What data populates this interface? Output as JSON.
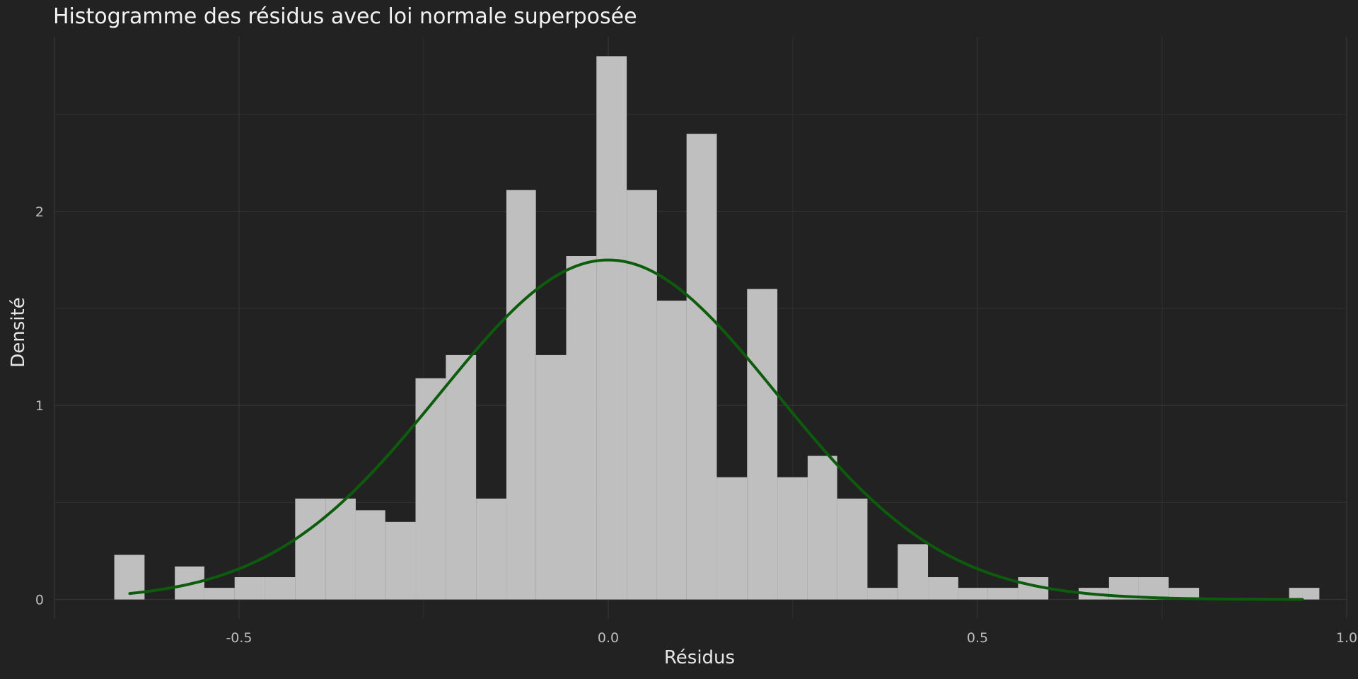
{
  "chart_data": {
    "type": "bar",
    "title": "Histogramme des résidus avec loi normale superposée",
    "xlabel": "Résidus",
    "ylabel": "Densité",
    "xlim": [
      -0.75,
      1.0
    ],
    "ylim": [
      -0.1,
      2.9
    ],
    "xticks": [
      -0.5,
      0.0,
      0.5,
      1.0
    ],
    "xtick_labels": [
      "-0.5",
      "0.0",
      "0.5",
      "1.0"
    ],
    "yticks": [
      0,
      1,
      2
    ],
    "ytick_labels": [
      "0",
      "1",
      "2"
    ],
    "grid": true,
    "legend": "none",
    "bin_width": 0.0408,
    "bins": [
      {
        "x0": -0.669,
        "x1": -0.628,
        "density": 0.23
      },
      {
        "x0": -0.628,
        "x1": -0.587,
        "density": 0.0
      },
      {
        "x0": -0.587,
        "x1": -0.547,
        "density": 0.17
      },
      {
        "x0": -0.547,
        "x1": -0.506,
        "density": 0.06
      },
      {
        "x0": -0.506,
        "x1": -0.465,
        "density": 0.115
      },
      {
        "x0": -0.465,
        "x1": -0.424,
        "density": 0.115
      },
      {
        "x0": -0.424,
        "x1": -0.383,
        "density": 0.52
      },
      {
        "x0": -0.383,
        "x1": -0.342,
        "density": 0.52
      },
      {
        "x0": -0.342,
        "x1": -0.302,
        "density": 0.46
      },
      {
        "x0": -0.302,
        "x1": -0.261,
        "density": 0.4
      },
      {
        "x0": -0.261,
        "x1": -0.22,
        "density": 1.14
      },
      {
        "x0": -0.22,
        "x1": -0.179,
        "density": 1.26
      },
      {
        "x0": -0.179,
        "x1": -0.138,
        "density": 0.52
      },
      {
        "x0": -0.138,
        "x1": -0.098,
        "density": 2.11
      },
      {
        "x0": -0.098,
        "x1": -0.057,
        "density": 1.26
      },
      {
        "x0": -0.057,
        "x1": -0.016,
        "density": 1.77
      },
      {
        "x0": -0.016,
        "x1": 0.025,
        "density": 2.8
      },
      {
        "x0": 0.025,
        "x1": 0.066,
        "density": 2.11
      },
      {
        "x0": 0.066,
        "x1": 0.106,
        "density": 1.54
      },
      {
        "x0": 0.106,
        "x1": 0.147,
        "density": 2.4
      },
      {
        "x0": 0.147,
        "x1": 0.188,
        "density": 0.63
      },
      {
        "x0": 0.188,
        "x1": 0.229,
        "density": 1.6
      },
      {
        "x0": 0.229,
        "x1": 0.27,
        "density": 0.63
      },
      {
        "x0": 0.27,
        "x1": 0.31,
        "density": 0.74
      },
      {
        "x0": 0.31,
        "x1": 0.351,
        "density": 0.52
      },
      {
        "x0": 0.351,
        "x1": 0.392,
        "density": 0.06
      },
      {
        "x0": 0.392,
        "x1": 0.433,
        "density": 0.285
      },
      {
        "x0": 0.433,
        "x1": 0.474,
        "density": 0.115
      },
      {
        "x0": 0.474,
        "x1": 0.514,
        "density": 0.06
      },
      {
        "x0": 0.514,
        "x1": 0.555,
        "density": 0.06
      },
      {
        "x0": 0.555,
        "x1": 0.596,
        "density": 0.115
      },
      {
        "x0": 0.596,
        "x1": 0.637,
        "density": 0.0
      },
      {
        "x0": 0.637,
        "x1": 0.678,
        "density": 0.06
      },
      {
        "x0": 0.678,
        "x1": 0.718,
        "density": 0.115
      },
      {
        "x0": 0.718,
        "x1": 0.759,
        "density": 0.115
      },
      {
        "x0": 0.759,
        "x1": 0.8,
        "density": 0.06
      },
      {
        "x0": 0.8,
        "x1": 0.841,
        "density": 0.0
      },
      {
        "x0": 0.841,
        "x1": 0.882,
        "density": 0.0
      },
      {
        "x0": 0.882,
        "x1": 0.922,
        "density": 0.0
      },
      {
        "x0": 0.922,
        "x1": 0.963,
        "density": 0.06
      }
    ],
    "normal_curve": {
      "mean": 0.0,
      "sd": 0.228,
      "x_range": [
        -0.648,
        0.94
      ],
      "color": "#0d5c0d"
    },
    "bar_color": "#bfbfbf",
    "background": "#222222",
    "grid_color": "#333333",
    "text_color": "#bdbdbd"
  }
}
